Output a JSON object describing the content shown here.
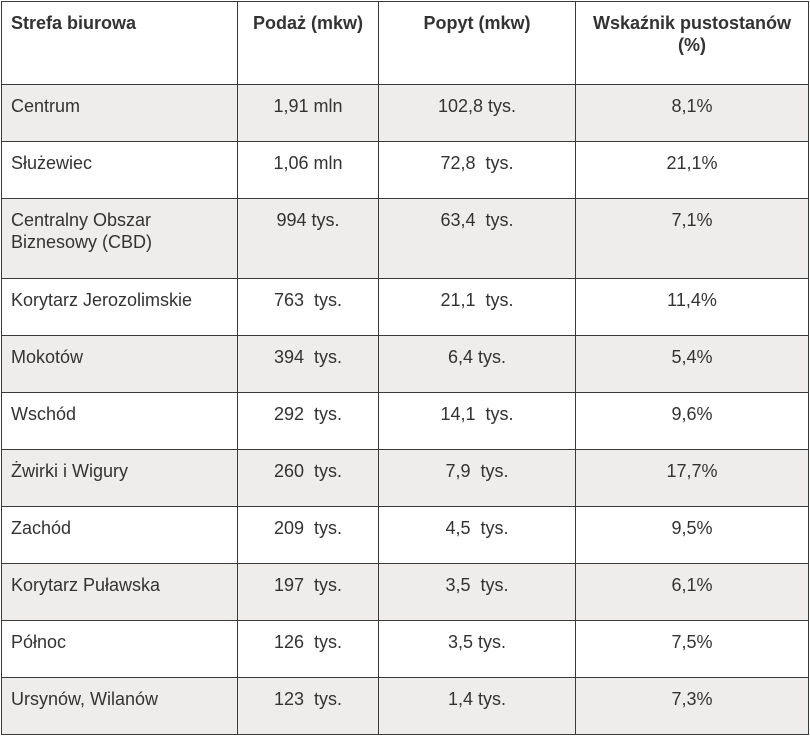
{
  "table": {
    "headers": [
      "Strefa biurowa",
      "Podaż (mkw)",
      "Popyt (mkw)",
      "Wskaźnik pustostanów (%)"
    ],
    "rows": [
      {
        "zone": "Centrum",
        "supply": "1,91 mln",
        "demand": "102,8 tys.",
        "vacancy": "8,1%"
      },
      {
        "zone": "Służewiec",
        "supply": "1,06 mln",
        "demand": "72,8  tys.",
        "vacancy": "21,1%"
      },
      {
        "zone": "Centralny Obszar Biznesowy (CBD)",
        "supply": "994 tys.",
        "demand": "63,4  tys.",
        "vacancy": "7,1%"
      },
      {
        "zone": "Korytarz Jerozolimskie",
        "supply": "763  tys.",
        "demand": "21,1  tys.",
        "vacancy": "11,4%"
      },
      {
        "zone": "Mokotów",
        "supply": "394  tys.",
        "demand": "6,4 tys.",
        "vacancy": "5,4%"
      },
      {
        "zone": "Wschód",
        "supply": "292  tys.",
        "demand": "14,1  tys.",
        "vacancy": "9,6%"
      },
      {
        "zone": "Żwirki i Wigury",
        "supply": "260  tys.",
        "demand": "7,9  tys.",
        "vacancy": "17,7%"
      },
      {
        "zone": "Zachód",
        "supply": "209  tys.",
        "demand": "4,5  tys.",
        "vacancy": "9,5%"
      },
      {
        "zone": "Korytarz Puławska",
        "supply": "197  tys.",
        "demand": "3,5  tys.",
        "vacancy": "6,1%"
      },
      {
        "zone": "Północ",
        "supply": "126  tys.",
        "demand": "3,5 tys.",
        "vacancy": "7,5%"
      },
      {
        "zone": "Ursynów, Wilanów",
        "supply": "123  tys.",
        "demand": "1,4 tys.",
        "vacancy": "7,3%"
      }
    ]
  },
  "colors": {
    "shaded_row": "#efedeb",
    "border": "#3a3a3a",
    "text": "#333333"
  }
}
